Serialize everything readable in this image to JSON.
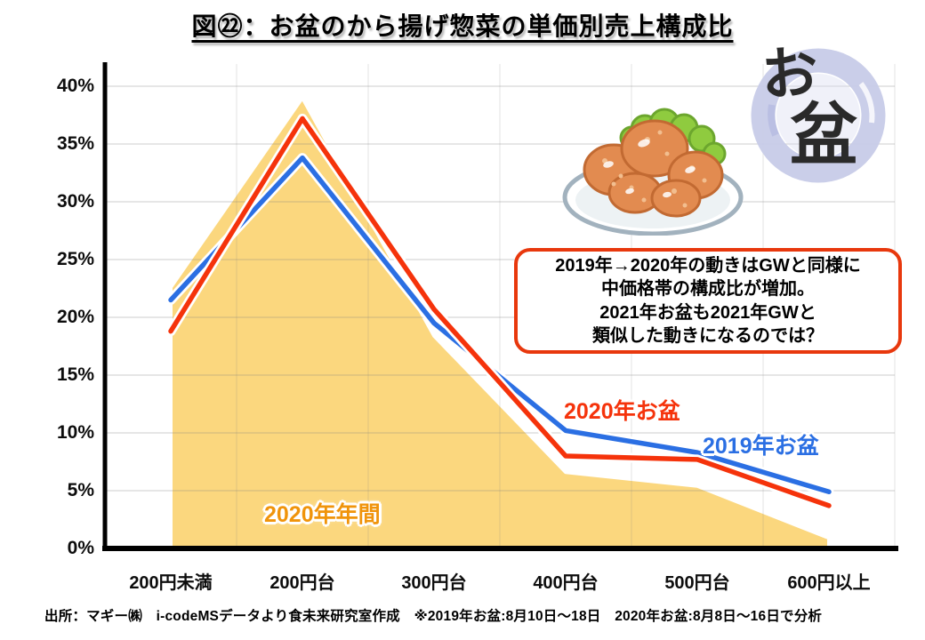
{
  "title": "図㉒：お盆のから揚げ惣菜の単価別売上構成比",
  "chart_data": {
    "type": "area",
    "categories": [
      "200円未満",
      "200円台",
      "300円台",
      "400円台",
      "500円台",
      "600円以上"
    ],
    "series": [
      {
        "name": "2020年年間",
        "kind": "area",
        "color": "#FBD77E",
        "values": [
          22.6,
          39.0,
          18.4,
          6.6,
          5.4,
          0.9
        ]
      },
      {
        "name": "2019年お盆",
        "kind": "line",
        "color": "#2B6FE3",
        "values": [
          21.5,
          33.8,
          19.5,
          10.2,
          8.3,
          4.9
        ]
      },
      {
        "name": "2020年お盆",
        "kind": "line",
        "color": "#F5330B",
        "values": [
          18.8,
          37.2,
          20.7,
          8.0,
          7.7,
          3.7
        ]
      }
    ],
    "ylim": [
      0,
      40
    ],
    "y_ticks": [
      "40%",
      "35%",
      "30%",
      "25%",
      "20%",
      "15%",
      "10%",
      "5%",
      "0%"
    ],
    "grid": true,
    "legend": "inline-labels"
  },
  "labels": {
    "area_label_color": "#F0940B"
  },
  "annotation": {
    "border_color": "#E8380D",
    "lines": [
      "2019年→2020年の動きはGWと同様に",
      "中価格帯の構成比が増加。",
      "2021年お盆も2021年GWと",
      "類似した動きになるのでは？"
    ]
  },
  "logo": {
    "char_top": "お",
    "char_bottom": "盆",
    "circle_color": "#C7CBE8"
  },
  "footer": "出所：マギー㈱　i-codeMSデータより食未来研究室作成　※2019年お盆:8月10日～18日　2020年お盆:8月8日～16日で分析"
}
